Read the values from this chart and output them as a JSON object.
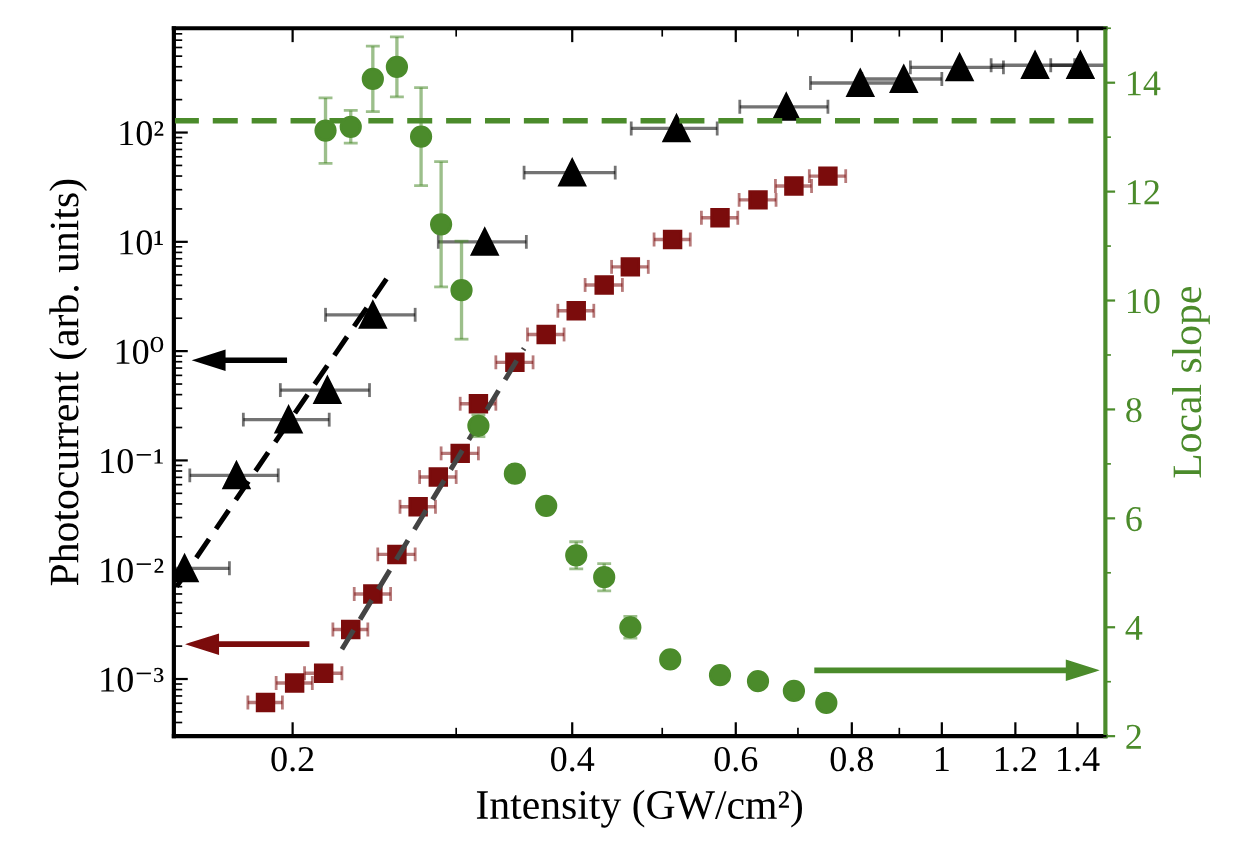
{
  "chart_data": {
    "type": "scatter",
    "xlabel": "Intensity (GW/cm²)",
    "ylabel": "Photocurrent (arb. units)",
    "y2label": "Local slope",
    "log": "xy",
    "xlim": [
      0.149,
      1.5
    ],
    "xticks": [
      0.2,
      0.4,
      0.6,
      0.8,
      1,
      1.2,
      1.4
    ],
    "ylim": [
      0.0003,
      900
    ],
    "yticks": [
      {
        "value": 0.001,
        "label": "10⁻³"
      },
      {
        "value": 0.01,
        "label": "10⁻²"
      },
      {
        "value": 0.1,
        "label": "10⁻¹"
      },
      {
        "value": 1,
        "label": "10⁰"
      },
      {
        "value": 10,
        "label": "10¹"
      },
      {
        "value": 100,
        "label": "10²"
      }
    ],
    "y2lim": [
      2,
      15
    ],
    "y2ticks": [
      2,
      4,
      6,
      8,
      10,
      12,
      14
    ],
    "grid": false,
    "series": [
      {
        "marker": "triangle",
        "color": "#000000",
        "x": [
          0.153,
          0.174,
          0.198,
          0.218,
          0.244,
          0.322,
          0.4,
          0.518,
          0.68,
          0.817,
          0.91,
          1.045,
          1.26,
          1.41
        ],
        "values": [
          0.0103,
          0.073,
          0.236,
          0.44,
          2.15,
          10,
          43,
          109,
          172,
          284,
          309,
          395,
          413,
          413
        ],
        "xerrors": [
          0.018,
          0.019,
          0.021,
          0.024,
          0.027,
          0.035,
          0.045,
          0.055,
          0.074,
          0.095,
          0.09,
          0.12,
          0.13,
          0.1
        ]
      },
      {
        "marker": "square",
        "color": "#7b0c0c",
        "x": [
          0.187,
          0.201,
          0.216,
          0.231,
          0.244,
          0.259,
          0.273,
          0.287,
          0.303,
          0.317,
          0.347,
          0.375,
          0.404,
          0.433,
          0.462,
          0.513,
          0.577,
          0.634,
          0.693,
          0.754
        ],
        "values": [
          0.00061,
          0.00092,
          0.00113,
          0.00284,
          0.006,
          0.0138,
          0.0377,
          0.0705,
          0.116,
          0.33,
          0.79,
          1.42,
          2.34,
          4.03,
          5.9,
          10.5,
          16.6,
          24.2,
          32.4,
          39.9
        ],
        "xerrors": [
          0.008,
          0.009,
          0.01,
          0.01,
          0.011,
          0.012,
          0.012,
          0.013,
          0.014,
          0.014,
          0.016,
          0.017,
          0.018,
          0.02,
          0.021,
          0.023,
          0.026,
          0.029,
          0.031,
          0.034
        ]
      },
      {
        "marker": "circle",
        "color": "#4b8b2b",
        "axis": "y2",
        "x": [
          0.217,
          0.231,
          0.244,
          0.259,
          0.275,
          0.289,
          0.304,
          0.317,
          0.347,
          0.375,
          0.404,
          0.433,
          0.462,
          0.51,
          0.577,
          0.634,
          0.693,
          0.751
        ],
        "values": [
          13.12,
          13.19,
          14.07,
          14.29,
          13.01,
          11.4,
          10.19,
          7.7,
          6.82,
          6.23,
          5.32,
          4.92,
          4.0,
          3.41,
          3.12,
          3.01,
          2.83,
          2.61
        ],
        "errors": [
          0.6,
          0.3,
          0.6,
          0.55,
          0.9,
          1.15,
          0.9,
          0.2,
          0.15,
          null,
          0.25,
          0.25,
          0.2,
          null,
          null,
          null,
          null,
          null
        ]
      },
      {
        "type": "line",
        "line_style": "dashed",
        "marker": "none",
        "color": "#000000",
        "x": [
          0.15,
          0.255
        ],
        "values": [
          0.007,
          5.2
        ]
      },
      {
        "type": "line",
        "line_style": "dashed",
        "marker": "none",
        "color": "#444444",
        "x": [
          0.226,
          0.355
        ],
        "values": [
          0.00187,
          1.06
        ]
      }
    ],
    "ref_lines": [
      {
        "axis": "y2",
        "value": 13.3,
        "color": "#4b8b2b",
        "line_style": "dashed"
      }
    ]
  }
}
